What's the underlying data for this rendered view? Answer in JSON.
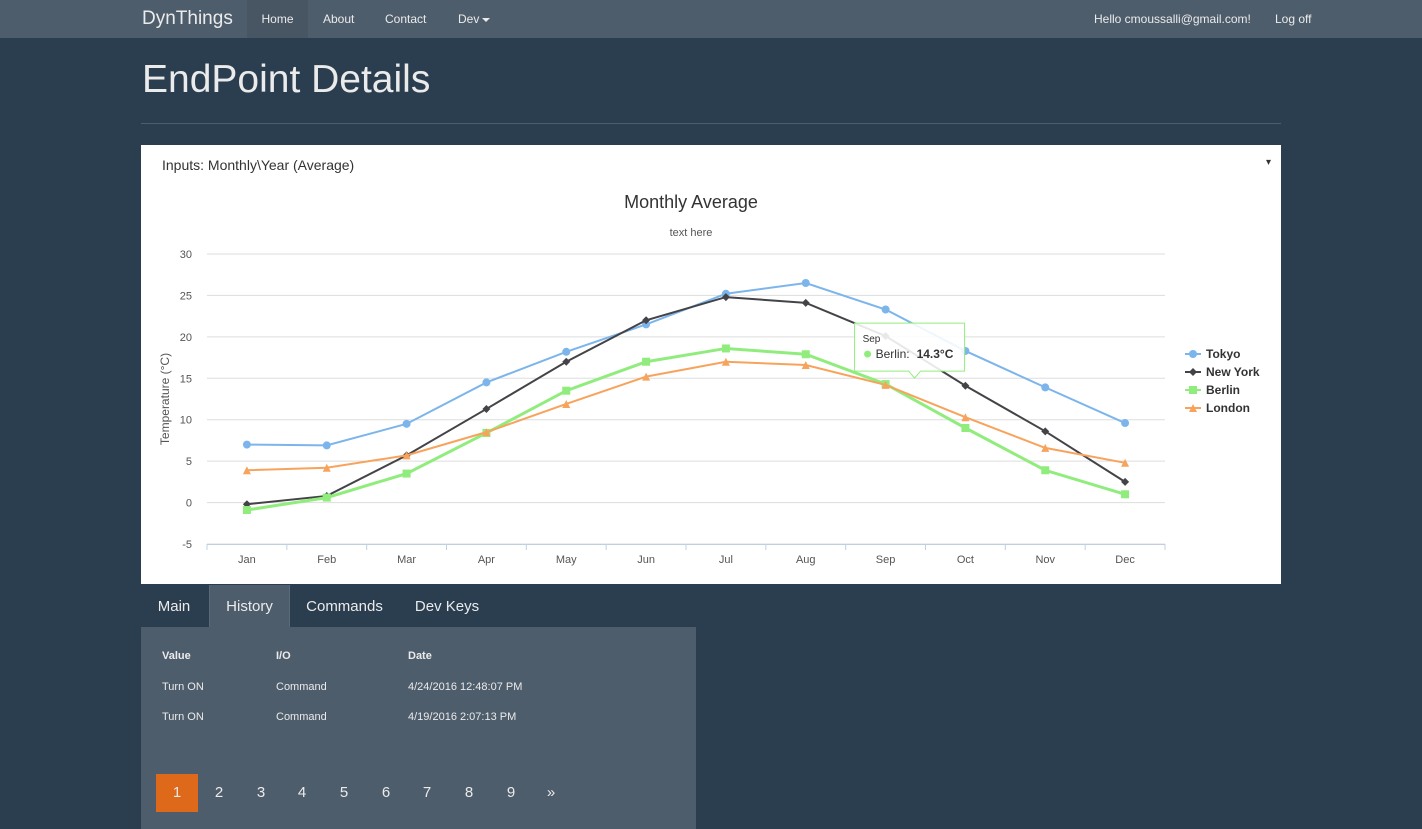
{
  "navbar": {
    "brand": "DynThings",
    "items": [
      "Home",
      "About",
      "Contact",
      "Dev"
    ],
    "greeting": "Hello cmoussalli@gmail.com!",
    "logoff": "Log off"
  },
  "page": {
    "title": "EndPoint Details"
  },
  "panel": {
    "heading": "Inputs: Monthly\\Year (Average)",
    "toggle": "▾"
  },
  "chart_data": {
    "type": "line",
    "title": "Monthly Average",
    "subtitle": "text here",
    "ylabel": "Temperature (°C)",
    "xlabel": "",
    "ylim": [
      -5,
      30
    ],
    "yticks": [
      -5,
      0,
      5,
      10,
      15,
      20,
      25,
      30
    ],
    "categories": [
      "Jan",
      "Feb",
      "Mar",
      "Apr",
      "May",
      "Jun",
      "Jul",
      "Aug",
      "Sep",
      "Oct",
      "Nov",
      "Dec"
    ],
    "series": [
      {
        "name": "Tokyo",
        "color": "#7cb5ec",
        "marker": "circle",
        "values": [
          7.0,
          6.9,
          9.5,
          14.5,
          18.2,
          21.5,
          25.2,
          26.5,
          23.3,
          18.3,
          13.9,
          9.6
        ]
      },
      {
        "name": "New York",
        "color": "#434348",
        "marker": "diamond",
        "values": [
          -0.2,
          0.8,
          5.7,
          11.3,
          17.0,
          22.0,
          24.8,
          24.1,
          20.1,
          14.1,
          8.6,
          2.5
        ]
      },
      {
        "name": "Berlin",
        "color": "#90ed7d",
        "marker": "square",
        "values": [
          -0.9,
          0.6,
          3.5,
          8.4,
          13.5,
          17.0,
          18.6,
          17.9,
          14.3,
          9.0,
          3.9,
          1.0
        ]
      },
      {
        "name": "London",
        "color": "#f7a35c",
        "marker": "triangle",
        "values": [
          3.9,
          4.2,
          5.7,
          8.5,
          11.9,
          15.2,
          17.0,
          16.6,
          14.2,
          10.3,
          6.6,
          4.8
        ]
      }
    ],
    "legend": "right",
    "tooltip": {
      "category": "Sep",
      "series": "Berlin",
      "label": "Berlin:",
      "value": "14.3°C"
    }
  },
  "tabs": [
    "Main",
    "History",
    "Commands",
    "Dev Keys"
  ],
  "history": {
    "headers": [
      "Value",
      "I/O",
      "Date"
    ],
    "rows": [
      [
        "Turn ON",
        "Command",
        "4/24/2016 12:48:07 PM"
      ],
      [
        "Turn ON",
        "Command",
        "4/19/2016 2:07:13 PM"
      ]
    ]
  },
  "pagination": [
    "1",
    "2",
    "3",
    "4",
    "5",
    "6",
    "7",
    "8",
    "9",
    "»"
  ],
  "colors": {
    "background": "#2b3e50",
    "navbar": "#4e5d6c",
    "accent": "#df691a"
  }
}
